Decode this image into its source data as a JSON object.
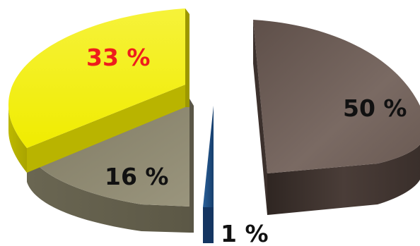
{
  "chart_data": {
    "type": "pie",
    "style": "3d-exploded",
    "title": "",
    "slices": [
      {
        "label": "50 %",
        "value": 50,
        "color": "#6e5e57",
        "label_color": "#111111"
      },
      {
        "label": "1 %",
        "value": 1,
        "color": "#1d4e86",
        "label_color": "#111111"
      },
      {
        "label": "16 %",
        "value": 16,
        "color": "#8f8a72",
        "label_color": "#111111"
      },
      {
        "label": "33 %",
        "value": 33,
        "color": "#f4f000",
        "label_color": "#ee1c1c"
      }
    ],
    "legend": "none",
    "grid": false
  }
}
